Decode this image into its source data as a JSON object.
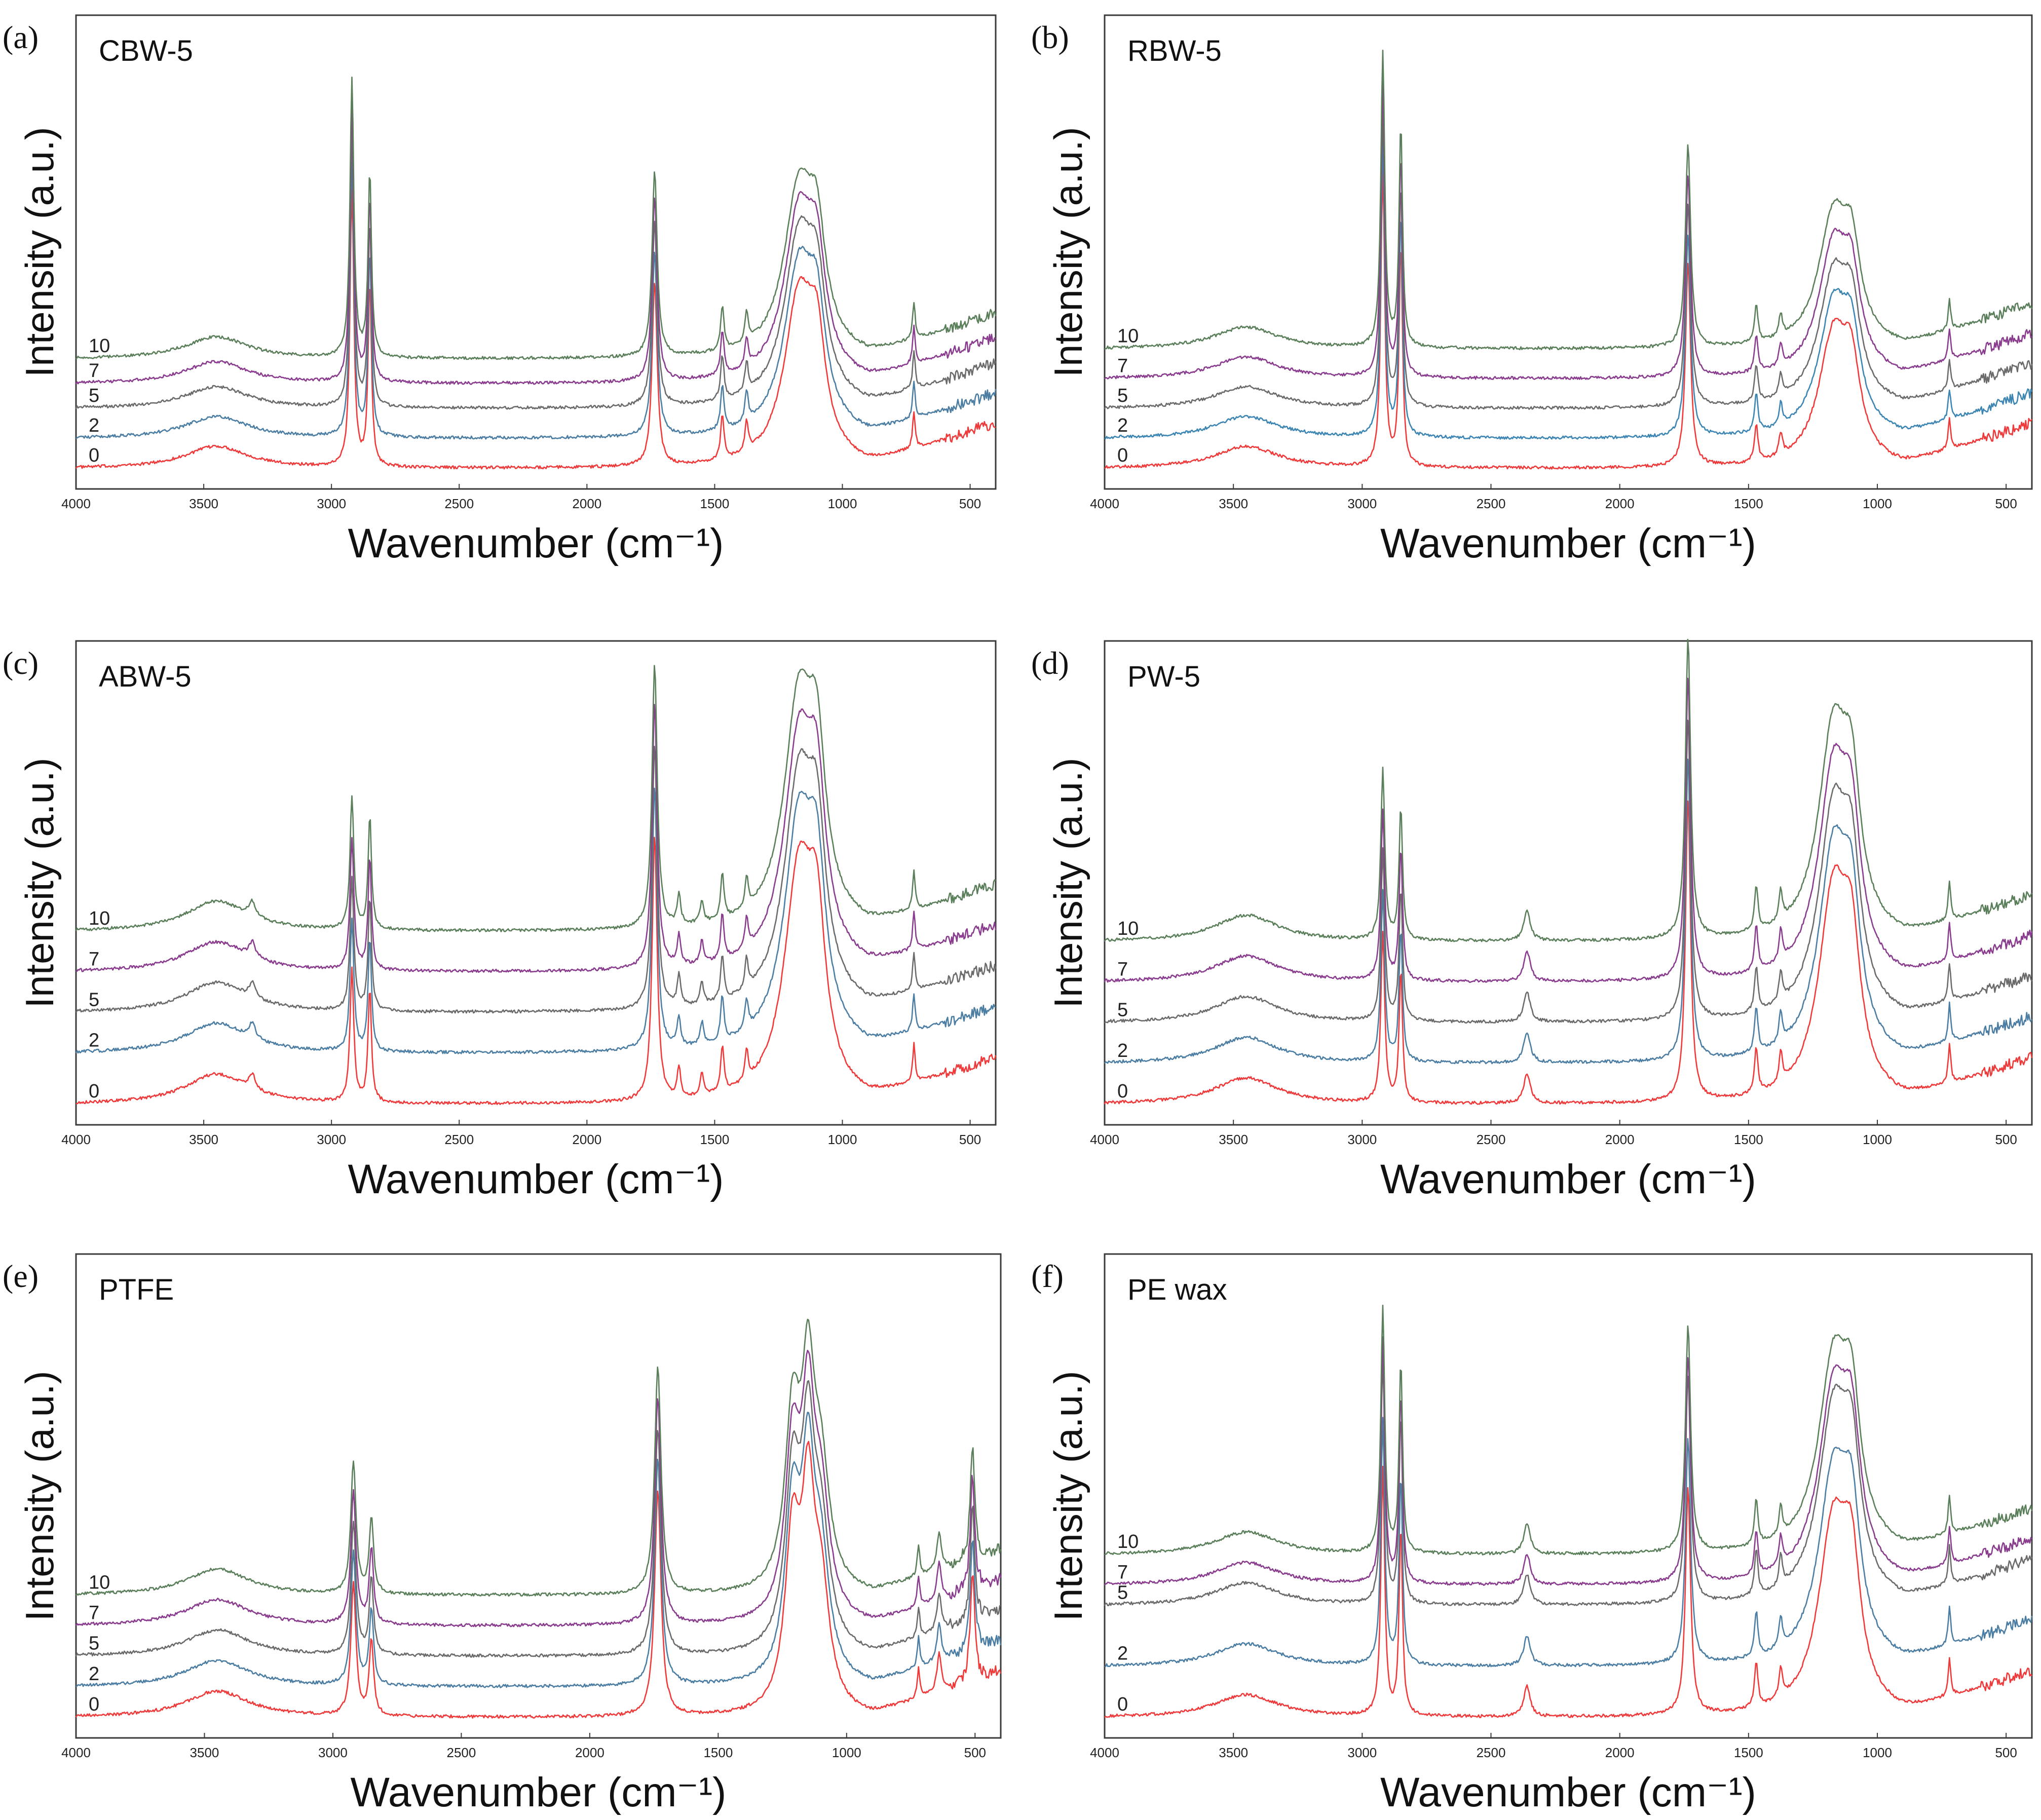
{
  "chart_data": [
    {
      "type": "line",
      "panel_letter": "(a)",
      "title": "CBW-5",
      "xlabel": "Wavenumber (cm⁻¹)",
      "ylabel": "Intensity (a.u.)",
      "xlim": [
        4000,
        400
      ],
      "x_ticks": [
        "4000",
        "3500",
        "3000",
        "2500",
        "2000",
        "1500",
        "1000",
        "500"
      ],
      "peaks": [
        [
          3450,
          0.06,
          150
        ],
        [
          2920,
          0.75,
          9
        ],
        [
          2850,
          0.5,
          8
        ],
        [
          1735,
          0.5,
          12
        ],
        [
          1470,
          0.12,
          8
        ],
        [
          1375,
          0.08,
          8
        ],
        [
          1170,
          0.45,
          70
        ],
        [
          1100,
          0.25,
          40
        ],
        [
          720,
          0.1,
          6
        ]
      ],
      "series": [
        {
          "name": "0",
          "label": "0",
          "color": "#ee3a3a",
          "offset": 0
        },
        {
          "name": "2",
          "label": "2",
          "color": "#4c7ea3",
          "offset": 0.06
        },
        {
          "name": "5",
          "label": "5",
          "color": "#6b6b6b",
          "offset": 0.12
        },
        {
          "name": "7",
          "label": "7",
          "color": "#8a3d8e",
          "offset": 0.17
        },
        {
          "name": "10",
          "label": "10",
          "color": "#5a7f5a",
          "offset": 0.22
        }
      ]
    },
    {
      "type": "line",
      "panel_letter": "(b)",
      "title": "RBW-5",
      "xlabel": "Wavenumber (cm⁻¹)",
      "ylabel": "Intensity (a.u.)",
      "xlim": [
        4000,
        400
      ],
      "x_ticks": [
        "4000",
        "3500",
        "3000",
        "2500",
        "2000",
        "1500",
        "1000",
        "500"
      ],
      "peaks": [
        [
          3450,
          0.06,
          150
        ],
        [
          2920,
          0.8,
          9
        ],
        [
          2850,
          0.6,
          8
        ],
        [
          1735,
          0.55,
          12
        ],
        [
          1470,
          0.1,
          8
        ],
        [
          1375,
          0.06,
          8
        ],
        [
          1170,
          0.35,
          70
        ],
        [
          1100,
          0.2,
          40
        ],
        [
          720,
          0.08,
          6
        ]
      ],
      "series": [
        {
          "name": "0",
          "label": "0",
          "color": "#ee3a3a",
          "offset": 0
        },
        {
          "name": "2",
          "label": "2",
          "color": "#3d86b3",
          "offset": 0.06
        },
        {
          "name": "5",
          "label": "5",
          "color": "#6b6b6b",
          "offset": 0.12
        },
        {
          "name": "7",
          "label": "7",
          "color": "#8a3d8e",
          "offset": 0.18
        },
        {
          "name": "10",
          "label": "10",
          "color": "#5a7f5a",
          "offset": 0.24
        }
      ]
    },
    {
      "type": "line",
      "panel_letter": "(c)",
      "title": "ABW-5",
      "xlabel": "Wavenumber (cm⁻¹)",
      "ylabel": "Intensity (a.u.)",
      "xlim": [
        4000,
        400
      ],
      "x_ticks": [
        "4000",
        "3500",
        "3000",
        "2500",
        "2000",
        "1500",
        "1000",
        "500"
      ],
      "peaks": [
        [
          3450,
          0.08,
          150
        ],
        [
          3310,
          0.04,
          15
        ],
        [
          2920,
          0.35,
          9
        ],
        [
          2850,
          0.3,
          8
        ],
        [
          1735,
          0.7,
          12
        ],
        [
          1640,
          0.08,
          8
        ],
        [
          1550,
          0.06,
          8
        ],
        [
          1470,
          0.12,
          8
        ],
        [
          1375,
          0.08,
          8
        ],
        [
          1170,
          0.6,
          70
        ],
        [
          1100,
          0.35,
          40
        ],
        [
          720,
          0.1,
          6
        ]
      ],
      "series": [
        {
          "name": "0",
          "label": "0",
          "color": "#ee3a3a",
          "offset": 0
        },
        {
          "name": "2",
          "label": "2",
          "color": "#4c7ea3",
          "offset": 0.1
        },
        {
          "name": "5",
          "label": "5",
          "color": "#6b6b6b",
          "offset": 0.18
        },
        {
          "name": "7",
          "label": "7",
          "color": "#8a3d8e",
          "offset": 0.26
        },
        {
          "name": "10",
          "label": "10",
          "color": "#5a7f5a",
          "offset": 0.34
        }
      ]
    },
    {
      "type": "line",
      "panel_letter": "(d)",
      "title": "PW-5",
      "xlabel": "Wavenumber (cm⁻¹)",
      "ylabel": "Intensity (a.u.)",
      "xlim": [
        4000,
        400
      ],
      "x_ticks": [
        "4000",
        "3500",
        "3000",
        "2500",
        "2000",
        "1500",
        "1000",
        "500"
      ],
      "peaks": [
        [
          3450,
          0.07,
          150
        ],
        [
          2920,
          0.45,
          9
        ],
        [
          2850,
          0.35,
          8
        ],
        [
          2360,
          0.08,
          15
        ],
        [
          1735,
          0.8,
          12
        ],
        [
          1470,
          0.12,
          8
        ],
        [
          1375,
          0.08,
          8
        ],
        [
          1170,
          0.55,
          70
        ],
        [
          1100,
          0.3,
          40
        ],
        [
          720,
          0.1,
          6
        ]
      ],
      "series": [
        {
          "name": "0",
          "label": "0",
          "color": "#ee3a3a",
          "offset": 0
        },
        {
          "name": "2",
          "label": "2",
          "color": "#4c7ea3",
          "offset": 0.08
        },
        {
          "name": "5",
          "label": "5",
          "color": "#6b6b6b",
          "offset": 0.16
        },
        {
          "name": "7",
          "label": "7",
          "color": "#8a3d8e",
          "offset": 0.24
        },
        {
          "name": "10",
          "label": "10",
          "color": "#5a7f5a",
          "offset": 0.32
        }
      ]
    },
    {
      "type": "line",
      "panel_letter": "(e)",
      "title": "PTFE",
      "xlabel": "Wavenumber (cm⁻¹)",
      "ylabel": "Intensity (a.u.)",
      "xlim": [
        4000,
        400
      ],
      "x_ticks": [
        "4000",
        "3500",
        "3000",
        "2500",
        "2000",
        "1500",
        "1000",
        "500"
      ],
      "peaks": [
        [
          3450,
          0.07,
          150
        ],
        [
          2920,
          0.35,
          12
        ],
        [
          2850,
          0.2,
          10
        ],
        [
          1735,
          0.6,
          15
        ],
        [
          1210,
          0.45,
          35
        ],
        [
          1150,
          0.5,
          30
        ],
        [
          1100,
          0.3,
          40
        ],
        [
          640,
          0.1,
          10
        ],
        [
          510,
          0.3,
          10
        ],
        [
          720,
          0.08,
          6
        ]
      ],
      "series": [
        {
          "name": "0",
          "label": "0",
          "color": "#ee3a3a",
          "offset": 0
        },
        {
          "name": "2",
          "label": "2",
          "color": "#4c7ea3",
          "offset": 0.06
        },
        {
          "name": "5",
          "label": "5",
          "color": "#6b6b6b",
          "offset": 0.12
        },
        {
          "name": "7",
          "label": "7",
          "color": "#8a3d8e",
          "offset": 0.18
        },
        {
          "name": "10",
          "label": "10",
          "color": "#5a7f5a",
          "offset": 0.24
        }
      ]
    },
    {
      "type": "line",
      "panel_letter": "(f)",
      "title": "PE wax",
      "xlabel": "Wavenumber (cm⁻¹)",
      "ylabel": "Intensity (a.u.)",
      "xlim": [
        4000,
        400
      ],
      "x_ticks": [
        "4000",
        "3500",
        "3000",
        "2500",
        "2000",
        "1500",
        "1000",
        "500"
      ],
      "peaks": [
        [
          3450,
          0.06,
          150
        ],
        [
          2920,
          0.65,
          9
        ],
        [
          2850,
          0.5,
          8
        ],
        [
          2360,
          0.08,
          15
        ],
        [
          1735,
          0.6,
          12
        ],
        [
          1470,
          0.12,
          8
        ],
        [
          1375,
          0.08,
          8
        ],
        [
          1170,
          0.5,
          70
        ],
        [
          1100,
          0.3,
          40
        ],
        [
          720,
          0.1,
          6
        ]
      ],
      "series": [
        {
          "name": "0",
          "label": "0",
          "color": "#ee3a3a",
          "offset": 0
        },
        {
          "name": "2",
          "label": "2",
          "color": "#4c7ea3",
          "offset": 0.1
        },
        {
          "name": "5",
          "label": "5",
          "color": "#6b6b6b",
          "offset": 0.22
        },
        {
          "name": "7",
          "label": "7",
          "color": "#8a3d8e",
          "offset": 0.26
        },
        {
          "name": "10",
          "label": "10",
          "color": "#5a7f5a",
          "offset": 0.32
        }
      ]
    }
  ]
}
